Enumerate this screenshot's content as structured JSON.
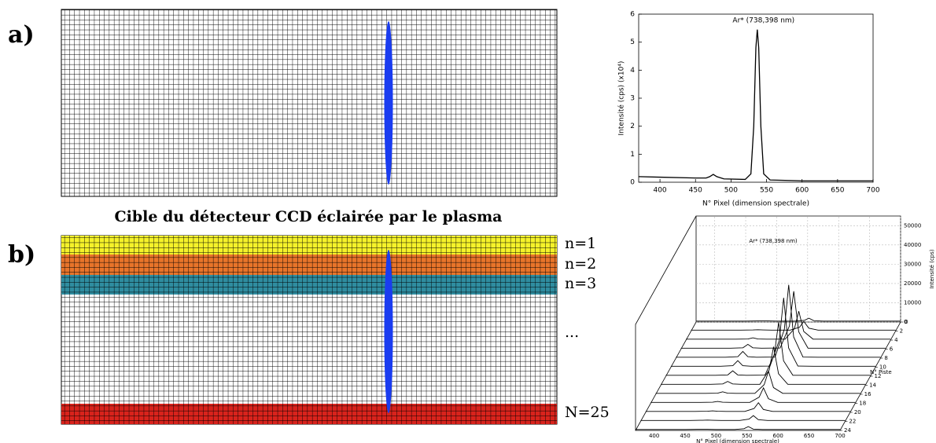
{
  "labels": {
    "a": "a)",
    "b": "b)"
  },
  "caption": "Cible du détecteur CCD éclairée par le plasma",
  "ccd_rows": [
    "n=1",
    "n=2",
    "n=3",
    "...",
    "N=25"
  ],
  "chart_data": [
    {
      "type": "line",
      "annotation": "Ar* (738,398 nm)",
      "x_label": "N° Pixel (dimension spectrale)",
      "y_label": "Intensité (cps) (x10⁴)",
      "x": [
        370,
        400,
        450,
        465,
        470,
        475,
        480,
        490,
        520,
        528,
        532,
        535,
        537,
        539,
        542,
        546,
        555,
        600,
        650,
        700
      ],
      "values": [
        0.2,
        0.18,
        0.15,
        0.15,
        0.2,
        0.28,
        0.2,
        0.12,
        0.1,
        0.3,
        2.0,
        4.8,
        5.45,
        4.8,
        2.0,
        0.3,
        0.08,
        0.05,
        0.05,
        0.05
      ],
      "color": "#000000",
      "xlim": [
        370,
        700
      ],
      "ylim": [
        0,
        6
      ],
      "xticks": [
        400,
        450,
        500,
        550,
        600,
        650,
        700
      ],
      "yticks": [
        0,
        1,
        2,
        3,
        4,
        5,
        6
      ]
    },
    {
      "type": "waterfall",
      "annotation": "Ar* (738,398 nm)",
      "x_label": "N° Pixel (dimension spectrale)",
      "y_label": "N° Piste",
      "z_label": "Intensité (cps)",
      "x": [
        370,
        450,
        470,
        478,
        486,
        500,
        530,
        545,
        552,
        560,
        575,
        600,
        700
      ],
      "series": [
        {
          "track": 0,
          "values": [
            500,
            500,
            600,
            600,
            600,
            500,
            500,
            900,
            2000,
            700,
            500,
            500,
            500
          ]
        },
        {
          "track": 2,
          "values": [
            500,
            500,
            600,
            700,
            600,
            500,
            500,
            2000,
            5000,
            1500,
            500,
            500,
            500
          ]
        },
        {
          "track": 4,
          "values": [
            500,
            500,
            600,
            1200,
            600,
            500,
            500,
            6000,
            15000,
            4500,
            500,
            500,
            500
          ]
        },
        {
          "track": 6,
          "values": [
            500,
            500,
            700,
            2500,
            700,
            500,
            600,
            12000,
            30000,
            9000,
            500,
            500,
            500
          ]
        },
        {
          "track": 8,
          "values": [
            500,
            500,
            800,
            3500,
            800,
            500,
            600,
            15000,
            38000,
            11000,
            600,
            500,
            500
          ]
        },
        {
          "track": 10,
          "values": [
            500,
            500,
            800,
            3400,
            800,
            500,
            600,
            14000,
            36000,
            10000,
            600,
            500,
            500
          ]
        },
        {
          "track": 12,
          "values": [
            500,
            500,
            700,
            2800,
            700,
            500,
            600,
            11000,
            28000,
            8000,
            500,
            500,
            500
          ]
        },
        {
          "track": 14,
          "values": [
            500,
            500,
            700,
            2000,
            700,
            500,
            500,
            8000,
            20000,
            6000,
            500,
            500,
            500
          ]
        },
        {
          "track": 16,
          "values": [
            500,
            500,
            600,
            1300,
            600,
            500,
            500,
            5000,
            12000,
            3500,
            500,
            500,
            500
          ]
        },
        {
          "track": 18,
          "values": [
            500,
            500,
            600,
            1000,
            600,
            500,
            500,
            3200,
            8000,
            2400,
            500,
            500,
            500
          ]
        },
        {
          "track": 20,
          "values": [
            500,
            500,
            600,
            800,
            600,
            500,
            500,
            2000,
            5000,
            1500,
            500,
            500,
            500
          ]
        },
        {
          "track": 22,
          "values": [
            500,
            500,
            600,
            700,
            600,
            500,
            500,
            1200,
            3000,
            900,
            500,
            500,
            500
          ]
        },
        {
          "track": 24,
          "values": [
            500,
            500,
            600,
            600,
            600,
            500,
            500,
            900,
            2000,
            700,
            500,
            500,
            500
          ]
        }
      ],
      "color": "#000000",
      "xlim": [
        370,
        700
      ],
      "ylim": [
        0,
        24
      ],
      "zlim": [
        0,
        55000
      ],
      "xticks": [
        400,
        450,
        500,
        550,
        600,
        650,
        700
      ],
      "yticks": [
        0,
        2,
        4,
        6,
        8,
        10,
        12,
        14,
        16,
        18,
        20,
        22,
        24
      ],
      "zticks": [
        0,
        10000,
        20000,
        30000,
        40000,
        50000
      ]
    }
  ]
}
